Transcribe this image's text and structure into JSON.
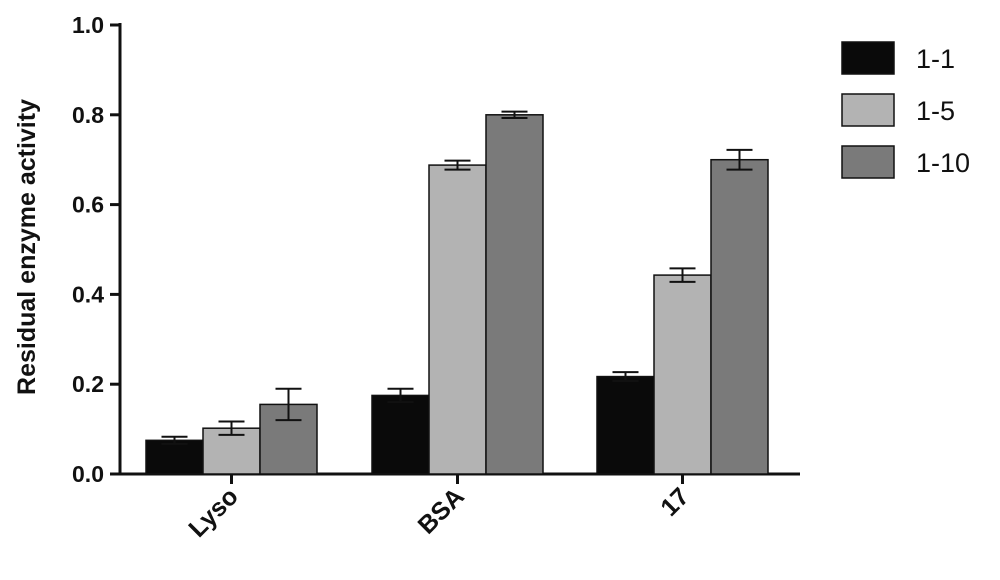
{
  "chart_data": {
    "type": "bar",
    "categories": [
      "Lyso",
      "BSA",
      "17"
    ],
    "series": [
      {
        "name": "1-1",
        "values": [
          0.075,
          0.175,
          0.217
        ],
        "errors": [
          0.008,
          0.015,
          0.01
        ],
        "color": "#0a0a0a"
      },
      {
        "name": "1-5",
        "values": [
          0.102,
          0.688,
          0.443
        ],
        "errors": [
          0.015,
          0.01,
          0.015
        ],
        "color": "#b3b3b3"
      },
      {
        "name": "1-10",
        "values": [
          0.155,
          0.8,
          0.7
        ],
        "errors": [
          0.035,
          0.007,
          0.022
        ],
        "color": "#7a7a7a"
      }
    ],
    "ylabel": "Residual enzyme activity",
    "ylim": [
      0,
      1.0
    ],
    "yticks": [
      "0.0",
      "0.2",
      "0.4",
      "0.6",
      "0.8",
      "1.0"
    ],
    "legend_position": "top-right",
    "grid": false
  }
}
